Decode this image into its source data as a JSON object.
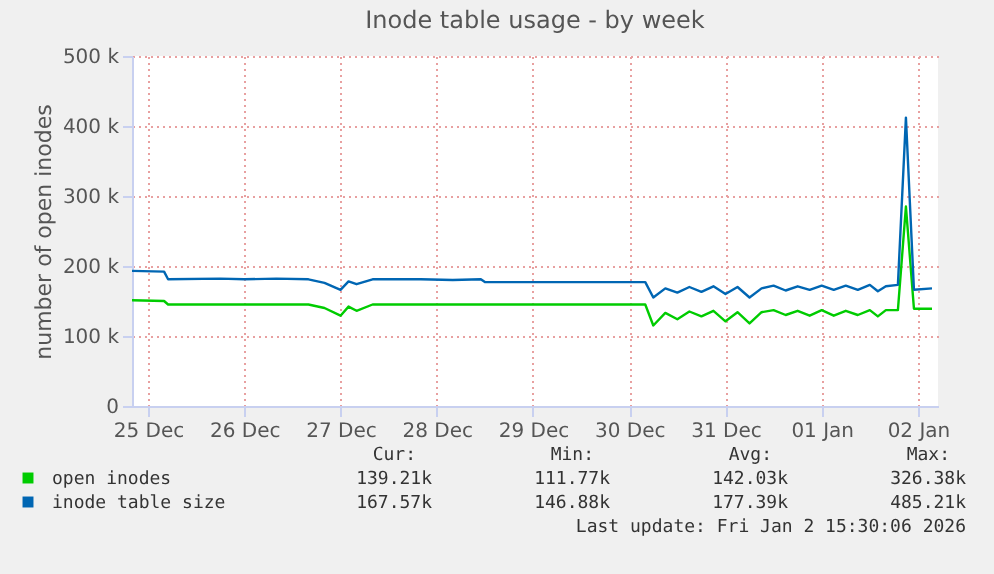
{
  "chart_data": {
    "type": "line",
    "title": "Inode table usage - by week",
    "ylabel": "number of open inodes",
    "x": [
      "2025-12-25T08:00",
      "2025-12-25T16:00",
      "2025-12-25T17:00",
      "2025-12-26T06:00",
      "2025-12-26T12:00",
      "2025-12-26T20:00",
      "2025-12-27T04:00",
      "2025-12-27T08:00",
      "2025-12-27T12:00",
      "2025-12-27T14:00",
      "2025-12-27T16:00",
      "2025-12-27T20:00",
      "2025-12-28T08:00",
      "2025-12-28T16:00",
      "2025-12-28T23:00",
      "2025-12-29T00:00",
      "2025-12-30T16:00",
      "2025-12-30T18:00",
      "2025-12-30T21:00",
      "2025-12-31T00:00",
      "2025-12-31T03:00",
      "2025-12-31T06:00",
      "2025-12-31T09:00",
      "2025-12-31T12:00",
      "2025-12-31T15:00",
      "2025-12-31T18:00",
      "2025-12-31T21:00",
      "2026-01-01T00:00",
      "2026-01-01T03:00",
      "2026-01-01T06:00",
      "2026-01-01T09:00",
      "2026-01-01T12:00",
      "2026-01-01T15:00",
      "2026-01-01T18:00",
      "2026-01-01T21:00",
      "2026-01-02T00:00",
      "2026-01-02T02:00",
      "2026-01-02T04:00",
      "2026-01-02T07:00",
      "2026-01-02T09:00",
      "2026-01-02T11:00",
      "2026-01-02T15:30"
    ],
    "series": [
      {
        "name": "open inodes",
        "color": "#00cc00",
        "values": [
          151000,
          150000,
          145000,
          145000,
          145000,
          145000,
          145000,
          140000,
          129000,
          142000,
          136000,
          145000,
          145000,
          145000,
          145000,
          145000,
          145000,
          115000,
          133000,
          124000,
          135000,
          128000,
          136000,
          121000,
          134000,
          118000,
          134000,
          137000,
          130000,
          136000,
          129000,
          137000,
          129000,
          136000,
          130000,
          137000,
          128000,
          137000,
          137000,
          285000,
          139000,
          139000
        ]
      },
      {
        "name": "inode table size",
        "color": "#0066b3",
        "values": [
          193000,
          192000,
          181000,
          182000,
          181000,
          182000,
          181000,
          176000,
          166000,
          178000,
          174000,
          181000,
          181000,
          180000,
          181000,
          177000,
          177000,
          155000,
          168000,
          162000,
          170000,
          163000,
          171000,
          160000,
          170000,
          155000,
          168000,
          172000,
          165000,
          171000,
          166000,
          172000,
          166000,
          172000,
          166000,
          173000,
          164000,
          171000,
          173000,
          412000,
          166000,
          168000
        ]
      }
    ],
    "xlim": [
      "2025-12-25T08:00",
      "2026-01-02T17:00"
    ],
    "xticks": [
      {
        "value": "2025-12-25T12:00",
        "label": "25 Dec"
      },
      {
        "value": "2025-12-26T12:00",
        "label": "26 Dec"
      },
      {
        "value": "2025-12-27T12:00",
        "label": "27 Dec"
      },
      {
        "value": "2025-12-28T12:00",
        "label": "28 Dec"
      },
      {
        "value": "2025-12-29T12:00",
        "label": "29 Dec"
      },
      {
        "value": "2025-12-30T12:00",
        "label": "30 Dec"
      },
      {
        "value": "2025-12-31T12:00",
        "label": "31 Dec"
      },
      {
        "value": "2026-01-01T12:00",
        "label": "01 Jan"
      },
      {
        "value": "2026-01-02T12:00",
        "label": "02 Jan"
      }
    ],
    "ylim": [
      0,
      500000
    ],
    "yticks": [
      0,
      {
        "value": 100000,
        "label": "100 k"
      },
      {
        "value": 200000,
        "label": "200 k"
      },
      {
        "value": 300000,
        "label": "300 k"
      },
      {
        "value": 400000,
        "label": "400 k"
      },
      {
        "value": 500000,
        "label": "500 k"
      }
    ],
    "grid": true,
    "legend": "bottom",
    "annotations": [
      "Cur:",
      "Min:",
      "Avg:",
      "Max:",
      "139.21k",
      "111.77k",
      "142.03k",
      "326.38k",
      "167.57k",
      "146.88k",
      "177.39k",
      "485.21k",
      "Last update: Fri Jan  2 15:30:06 2026"
    ]
  }
}
